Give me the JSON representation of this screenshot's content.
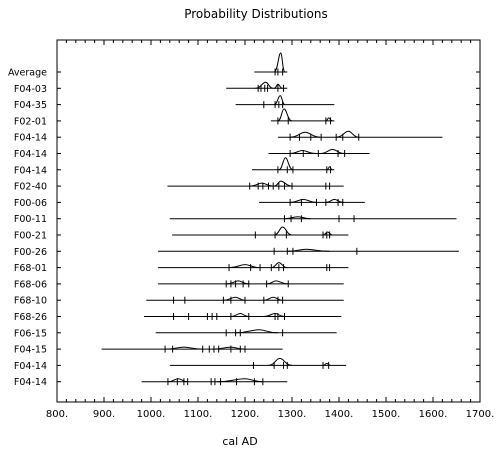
{
  "chart_data": {
    "type": "range",
    "title": "Probability Distributions",
    "xlabel": "cal AD",
    "ylabel": "",
    "xlim": [
      800,
      1700
    ],
    "x_ticks": [
      "800.",
      "900.",
      "1000.",
      "1100.",
      "1200.",
      "1300.",
      "1400.",
      "1500.",
      "1600.",
      "1700."
    ],
    "grid": false,
    "rows": [
      {
        "label": "Average",
        "range": [
          1220,
          1290
        ],
        "ticks": [
          1264,
          1270,
          1280
        ],
        "peaks": [
          [
            1262,
            1285,
            1276,
            19
          ]
        ]
      },
      {
        "label": "F04-03",
        "range": [
          1160,
          1290
        ],
        "ticks": [
          1228,
          1234,
          1242,
          1248,
          1270,
          1282
        ],
        "peaks": [
          [
            1222,
            1260,
            1244,
            6
          ],
          [
            1262,
            1280,
            1270,
            4
          ]
        ]
      },
      {
        "label": "F04-35",
        "range": [
          1180,
          1390
        ],
        "ticks": [
          1240,
          1264,
          1272,
          1280
        ],
        "peaks": [
          [
            1262,
            1285,
            1275,
            9
          ]
        ]
      },
      {
        "label": "F02-01",
        "range": [
          1255,
          1390
        ],
        "ticks": [
          1270,
          1292,
          1372,
          1382
        ],
        "peaks": [
          [
            1270,
            1300,
            1283,
            12
          ],
          [
            1372,
            1386,
            1378,
            3
          ]
        ]
      },
      {
        "label": "F04-14",
        "range": [
          1270,
          1620
        ],
        "ticks": [
          1296,
          1316,
          1340,
          1362,
          1394,
          1408,
          1442
        ],
        "peaks": [
          [
            1296,
            1360,
            1328,
            5
          ],
          [
            1394,
            1442,
            1420,
            6
          ]
        ]
      },
      {
        "label": "F04-14",
        "range": [
          1250,
          1465
        ],
        "ticks": [
          1296,
          1324,
          1356,
          1398,
          1412
        ],
        "peaks": [
          [
            1296,
            1350,
            1322,
            3
          ],
          [
            1360,
            1412,
            1386,
            4
          ]
        ]
      },
      {
        "label": "F04-14",
        "range": [
          1215,
          1390
        ],
        "ticks": [
          1270,
          1290,
          1302,
          1374,
          1382
        ],
        "peaks": [
          [
            1272,
            1302,
            1286,
            12
          ],
          [
            1374,
            1386,
            1380,
            3
          ]
        ]
      },
      {
        "label": "F02-40",
        "range": [
          1035,
          1410
        ],
        "ticks": [
          1210,
          1228,
          1238,
          1250,
          1260,
          1272,
          1284,
          1300,
          1372,
          1380
        ],
        "peaks": [
          [
            1210,
            1260,
            1236,
            3
          ],
          [
            1262,
            1300,
            1276,
            5
          ]
        ]
      },
      {
        "label": "F00-06",
        "range": [
          1230,
          1455
        ],
        "ticks": [
          1296,
          1320,
          1352,
          1372,
          1398,
          1408
        ],
        "peaks": [
          [
            1296,
            1352,
            1324,
            3
          ],
          [
            1372,
            1410,
            1390,
            3
          ]
        ]
      },
      {
        "label": "F00-11",
        "range": [
          1040,
          1650
        ],
        "ticks": [
          1284,
          1298,
          1320,
          1400,
          1432
        ],
        "peaks": [
          [
            1284,
            1340,
            1312,
            2
          ]
        ]
      },
      {
        "label": "F00-21",
        "range": [
          1045,
          1420
        ],
        "ticks": [
          1222,
          1264,
          1288,
          1366,
          1374,
          1380
        ],
        "peaks": [
          [
            1262,
            1300,
            1280,
            8
          ],
          [
            1366,
            1386,
            1376,
            3
          ]
        ]
      },
      {
        "label": "F00-26",
        "range": [
          1015,
          1655
        ],
        "ticks": [
          1262,
          1290,
          1302,
          1438
        ],
        "peaks": [
          [
            1290,
            1380,
            1330,
            2
          ]
        ]
      },
      {
        "label": "F68-01",
        "range": [
          1015,
          1420
        ],
        "ticks": [
          1166,
          1212,
          1232,
          1256,
          1272,
          1282,
          1374,
          1380
        ],
        "peaks": [
          [
            1166,
            1232,
            1200,
            3
          ],
          [
            1256,
            1290,
            1272,
            5
          ]
        ]
      },
      {
        "label": "F68-06",
        "range": [
          1015,
          1410
        ],
        "ticks": [
          1160,
          1170,
          1180,
          1196,
          1208,
          1246,
          1292
        ],
        "peaks": [
          [
            1160,
            1208,
            1186,
            3
          ],
          [
            1246,
            1292,
            1266,
            3
          ]
        ]
      },
      {
        "label": "F68-10",
        "range": [
          990,
          1410
        ],
        "ticks": [
          1048,
          1072,
          1154,
          1170,
          1200,
          1240,
          1270,
          1280
        ],
        "peaks": [
          [
            1154,
            1200,
            1180,
            3
          ],
          [
            1240,
            1280,
            1260,
            3
          ]
        ]
      },
      {
        "label": "F68-26",
        "range": [
          985,
          1405
        ],
        "ticks": [
          1048,
          1080,
          1120,
          1130,
          1140,
          1170,
          1208,
          1264,
          1270,
          1284
        ],
        "peaks": [
          [
            1170,
            1208,
            1190,
            3
          ],
          [
            1240,
            1284,
            1264,
            3
          ]
        ]
      },
      {
        "label": "F06-15",
        "range": [
          1010,
          1395
        ],
        "ticks": [
          1160,
          1180,
          1190,
          1280
        ],
        "peaks": [
          [
            1180,
            1270,
            1230,
            3
          ]
        ]
      },
      {
        "label": "F04-15",
        "range": [
          895,
          1280
        ],
        "ticks": [
          1030,
          1046,
          1110,
          1124,
          1134,
          1144,
          1170,
          1190,
          1200
        ],
        "peaks": [
          [
            1030,
            1110,
            1070,
            2
          ],
          [
            1130,
            1200,
            1170,
            2
          ]
        ]
      },
      {
        "label": "F04-14",
        "range": [
          1040,
          1415
        ],
        "ticks": [
          1218,
          1262,
          1282,
          1290,
          1366,
          1378
        ],
        "peaks": [
          [
            1250,
            1300,
            1274,
            7
          ],
          [
            1366,
            1382,
            1374,
            2
          ]
        ]
      },
      {
        "label": "F04-14",
        "range": [
          980,
          1290
        ],
        "ticks": [
          1036,
          1056,
          1070,
          1078,
          1128,
          1136,
          1148,
          1182,
          1220,
          1238
        ],
        "peaks": [
          [
            1036,
            1078,
            1058,
            3
          ],
          [
            1140,
            1238,
            1200,
            3
          ]
        ]
      }
    ]
  }
}
